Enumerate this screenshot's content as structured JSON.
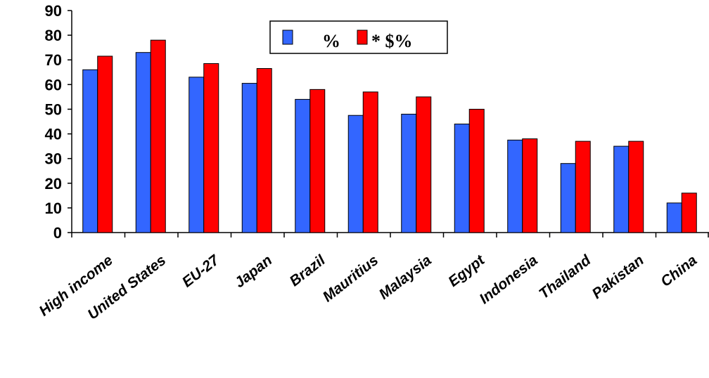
{
  "chart_data": {
    "type": "bar",
    "categories": [
      "High income",
      "United States",
      "EU-27",
      "Japan",
      "Brazil",
      "Mauritius",
      "Malaysia",
      "Egypt",
      "Indonesia",
      "Thailand",
      "Pakistan",
      "China"
    ],
    "series": [
      {
        "name": "%",
        "color": "#3366ff",
        "values": [
          66,
          73,
          63,
          60.5,
          54,
          47.5,
          48,
          44,
          37.5,
          28,
          35,
          12
        ]
      },
      {
        "name": "* $%",
        "color": "#ff0000",
        "values": [
          71.5,
          78,
          68.5,
          66.5,
          58,
          57,
          55,
          50,
          38,
          37,
          37,
          16
        ]
      }
    ],
    "yticks": [
      "0",
      "10",
      "20",
      "30",
      "40",
      "50",
      "60",
      "70",
      "80",
      "90"
    ],
    "ylim": [
      0,
      90
    ],
    "grid": false,
    "legend": "top-center"
  }
}
